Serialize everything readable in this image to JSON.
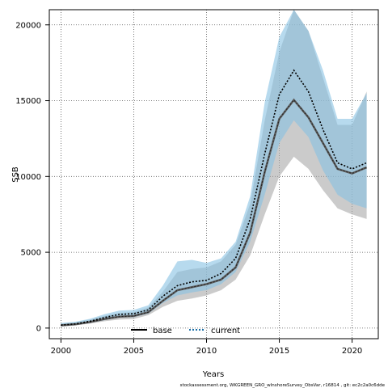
{
  "chart_data": {
    "type": "line",
    "xlabel": "Years",
    "ylabel": "SSB",
    "xlim": [
      1999.2,
      2021.8
    ],
    "ylim": [
      -700,
      21000
    ],
    "x_ticks": [
      2000,
      2005,
      2010,
      2015,
      2020
    ],
    "y_ticks": [
      0,
      5000,
      10000,
      15000,
      20000
    ],
    "grid": true,
    "legend_position": "bottom-center",
    "x": [
      2000,
      2001,
      2002,
      2003,
      2004,
      2005,
      2006,
      2007,
      2008,
      2009,
      2010,
      2011,
      2012,
      2013,
      2014,
      2015,
      2016,
      2017,
      2018,
      2019,
      2020,
      2021
    ],
    "series": [
      {
        "name": "base",
        "line_style": "solid",
        "color": "#5c5c5c",
        "band_color": "#a8a8a8",
        "values": [
          180,
          250,
          400,
          600,
          750,
          800,
          1050,
          1800,
          2500,
          2700,
          2900,
          3200,
          4000,
          6300,
          10300,
          13800,
          15050,
          13900,
          12200,
          10500,
          10200,
          10600
        ],
        "lower": [
          100,
          170,
          300,
          450,
          560,
          600,
          850,
          1400,
          1800,
          1950,
          2150,
          2500,
          3200,
          4800,
          7500,
          10000,
          11300,
          10500,
          9100,
          7900,
          7500,
          7200
        ],
        "upper": [
          300,
          380,
          560,
          800,
          1000,
          1050,
          1350,
          2400,
          3700,
          3900,
          4000,
          4400,
          5500,
          8200,
          13700,
          18200,
          21000,
          19600,
          16500,
          13400,
          13400,
          15600
        ]
      },
      {
        "name": "current",
        "line_style": "dotted",
        "color": "#000000",
        "band_color": "#87c1e3",
        "values": [
          200,
          280,
          450,
          700,
          900,
          950,
          1200,
          2100,
          2800,
          3050,
          3150,
          3600,
          4600,
          7200,
          11500,
          15400,
          17000,
          15600,
          13100,
          10900,
          10500,
          10900
        ],
        "lower": [
          120,
          200,
          330,
          520,
          700,
          720,
          950,
          1650,
          2150,
          2350,
          2500,
          2900,
          3700,
          5700,
          8800,
          12200,
          13700,
          12600,
          10400,
          8800,
          8200,
          7900
        ],
        "upper": [
          330,
          420,
          610,
          920,
          1150,
          1200,
          1500,
          2800,
          4400,
          4500,
          4300,
          4600,
          5700,
          8700,
          14900,
          19200,
          21000,
          19600,
          17000,
          13800,
          13800,
          15500
        ]
      }
    ]
  },
  "footer": "stockassessment.org, WKGREEN_GRO_wInshoreSurvey_ObsVar,  r16814 ,  git:  ec2c2a0c6dde"
}
